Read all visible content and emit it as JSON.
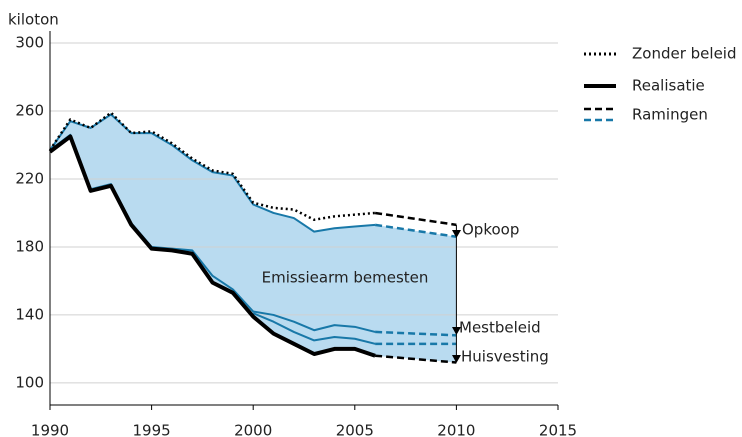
{
  "chart_data": {
    "type": "line",
    "y_label": "kiloton",
    "x": [
      1990,
      1991,
      1992,
      1993,
      1994,
      1995,
      1996,
      1997,
      1998,
      1999,
      2000,
      2001,
      2002,
      2003,
      2004,
      2005,
      2006,
      2010
    ],
    "xlim": [
      1990,
      2015
    ],
    "xticks": [
      1990,
      1995,
      2000,
      2005,
      2010,
      2015
    ],
    "ylim": [
      87,
      300
    ],
    "yticks": [
      100,
      140,
      180,
      220,
      260,
      300
    ],
    "grid": true,
    "fill_color": "#b9dbf0",
    "fill_between": [
      1,
      4
    ],
    "projection_label": "Ramingen",
    "series": [
      {
        "name": "Zonder beleid",
        "color": "#000000",
        "style": "dotted",
        "values": [
          237,
          255,
          250,
          259,
          247,
          248,
          241,
          232,
          225,
          223,
          206,
          203,
          202,
          196,
          198,
          199,
          200,
          null
        ],
        "projection": [
          null,
          null,
          null,
          null,
          null,
          null,
          null,
          null,
          null,
          null,
          null,
          null,
          null,
          null,
          null,
          null,
          200,
          193
        ]
      },
      {
        "color": "#1878a8",
        "style": "solid",
        "values": [
          237,
          254,
          250,
          258,
          247,
          247,
          240,
          231,
          224,
          222,
          205,
          200,
          197,
          189,
          191,
          192,
          193,
          null
        ],
        "projection": [
          null,
          null,
          null,
          null,
          null,
          null,
          null,
          null,
          null,
          null,
          null,
          null,
          null,
          null,
          null,
          null,
          193,
          186
        ]
      },
      {
        "color": "#1878a8",
        "style": "solid",
        "values": [
          237,
          246,
          214,
          217,
          194,
          180,
          179,
          178,
          163,
          155,
          142,
          140,
          136,
          131,
          134,
          133,
          130,
          null
        ],
        "projection": [
          null,
          null,
          null,
          null,
          null,
          null,
          null,
          null,
          null,
          null,
          null,
          null,
          null,
          null,
          null,
          null,
          130,
          128
        ]
      },
      {
        "color": "#1878a8",
        "style": "solid",
        "values": [
          null,
          null,
          null,
          null,
          null,
          null,
          null,
          null,
          null,
          null,
          141,
          136,
          130,
          125,
          127,
          126,
          123,
          null
        ],
        "projection": [
          null,
          null,
          null,
          null,
          null,
          null,
          null,
          null,
          null,
          null,
          null,
          null,
          null,
          null,
          null,
          null,
          123,
          123
        ]
      },
      {
        "name": "Realisatie",
        "color": "#000000",
        "style": "thick",
        "values": [
          236,
          245,
          213,
          216,
          193,
          179,
          178,
          176,
          159,
          153,
          139,
          129,
          123,
          117,
          120,
          120,
          116,
          null
        ],
        "projection": [
          null,
          null,
          null,
          null,
          null,
          null,
          null,
          null,
          null,
          null,
          null,
          null,
          null,
          null,
          null,
          null,
          116,
          112
        ]
      }
    ],
    "annotations": [
      "Opkoop",
      "Mestbeleid",
      "Huisvesting",
      "Emissiearm bemesten"
    ]
  }
}
